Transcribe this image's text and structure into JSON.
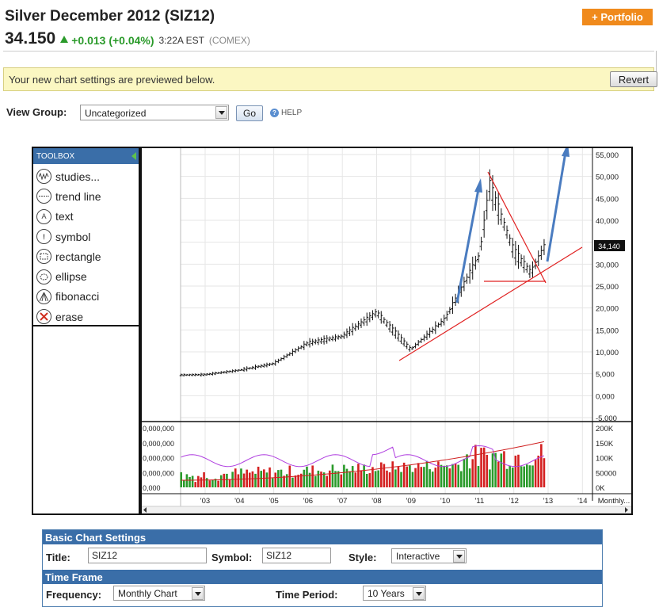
{
  "header": {
    "title": "Silver December 2012 (SIZ12)",
    "price": "34.150",
    "change": "+0.013 (+0.04%)",
    "time": "3:22A EST",
    "exchange": "(COMEX)",
    "portfolio_label": "+ Portfolio"
  },
  "notice": {
    "text": "Your new chart settings are previewed below.",
    "revert_label": "Revert"
  },
  "view_group": {
    "label": "View Group:",
    "selected": "Uncategorized",
    "go_label": "Go",
    "help_label": "HELP"
  },
  "toolbox": {
    "title": "TOOLBOX",
    "items": [
      {
        "label": "studies...",
        "icon": "studies-icon"
      },
      {
        "label": "trend line",
        "icon": "trend-line-icon"
      },
      {
        "label": "text",
        "icon": "text-icon"
      },
      {
        "label": "symbol",
        "icon": "symbol-icon"
      },
      {
        "label": "rectangle",
        "icon": "rectangle-icon"
      },
      {
        "label": "ellipse",
        "icon": "ellipse-icon"
      },
      {
        "label": "fibonacci",
        "icon": "fibonacci-icon"
      },
      {
        "label": "erase",
        "icon": "erase-icon"
      }
    ]
  },
  "chart_data": {
    "type": "bar",
    "price_axis_labels": [
      "55,000",
      "50,000",
      "45,000",
      "40,000",
      "35,000",
      "30,000",
      "25,000",
      "20,000",
      "15,000",
      "10,000",
      "5,000",
      "0,000",
      "-5,000"
    ],
    "current_price_tag": "34,140",
    "volume_axis_left": [
      "0,000,000",
      "0,000,000",
      "0,000,000",
      "0,000,000",
      "0,000"
    ],
    "volume_axis_right": [
      "200K",
      "150K",
      "100K",
      "50000",
      "0K"
    ],
    "x_labels": [
      "'03",
      "'04",
      "'05",
      "'06",
      "'07",
      "'08",
      "'09",
      "'10",
      "'11",
      "'12",
      "'13",
      "'14",
      "Monthly..."
    ],
    "price_series_approx": [
      {
        "x": "'03",
        "y": 4800
      },
      {
        "x": "'04",
        "y": 5800
      },
      {
        "x": "'05",
        "y": 7300
      },
      {
        "x": "'06",
        "y": 12000
      },
      {
        "x": "'07",
        "y": 13500
      },
      {
        "x": "'08",
        "y": 19000
      },
      {
        "x": "'09",
        "y": 10500
      },
      {
        "x": "'10",
        "y": 17500
      },
      {
        "x": "'11",
        "y": 32000
      },
      {
        "x": "'11.3",
        "y": 48000
      },
      {
        "x": "'12",
        "y": 33000
      },
      {
        "x": "'12.5",
        "y": 28000
      },
      {
        "x": "'12.9",
        "y": 34140
      }
    ]
  },
  "settings": {
    "basic_header": "Basic Chart Settings",
    "title_label": "Title:",
    "title_value": "SIZ12",
    "symbol_label": "Symbol:",
    "symbol_value": "SIZ12",
    "style_label": "Style:",
    "style_value": "Interactive",
    "timeframe_header": "Time Frame",
    "frequency_label": "Frequency:",
    "frequency_value": "Monthly Chart",
    "period_label": "Time Period:",
    "period_value": "10 Years"
  }
}
